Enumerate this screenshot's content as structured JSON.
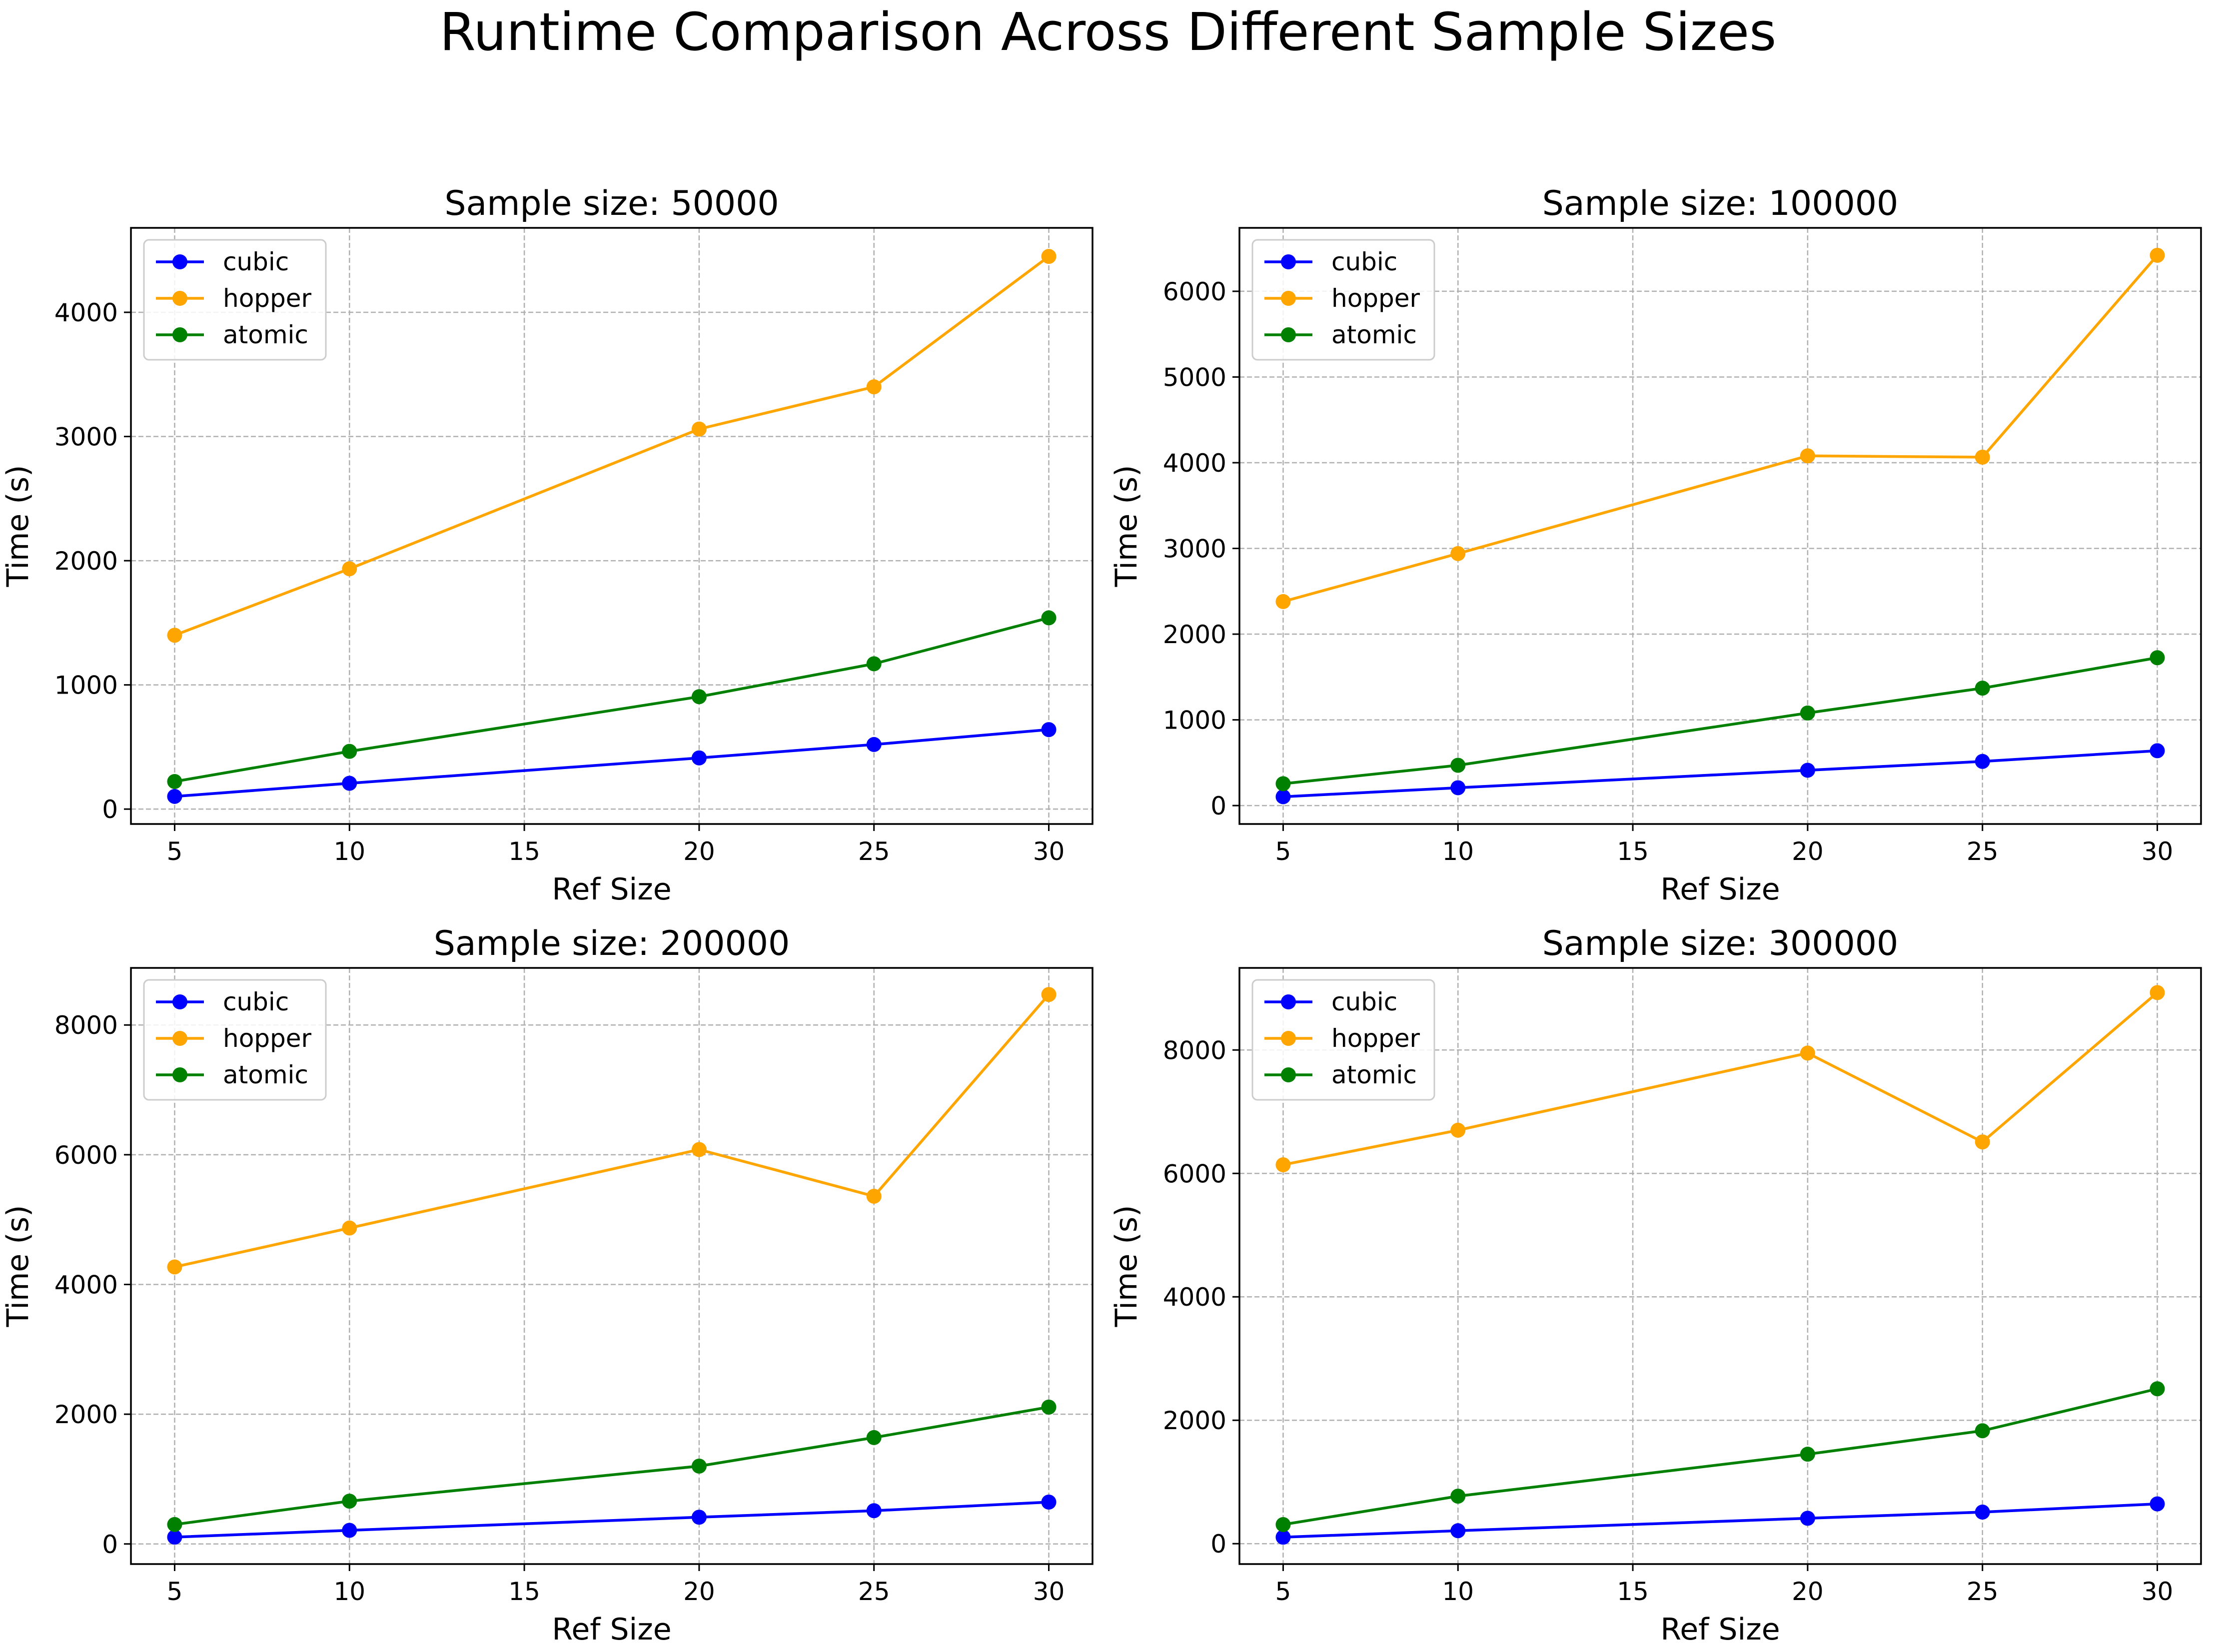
{
  "figure_title": "Runtime Comparison Across Different Sample Sizes",
  "chart_data": [
    {
      "type": "line",
      "title": "Sample size: 50000",
      "xlabel": "Ref Size",
      "ylabel": "Time (s)",
      "x": [
        5,
        10,
        20,
        25,
        30
      ],
      "xticks": [
        5,
        10,
        15,
        20,
        25,
        30
      ],
      "xlim": [
        3.75,
        31.25
      ],
      "yticks": [
        0,
        1000,
        2000,
        3000,
        4000
      ],
      "ylim": [
        -120,
        4680
      ],
      "grid": true,
      "legend_position": "upper-left",
      "series": [
        {
          "name": "cubic",
          "color": "#0000ff",
          "values": [
            102,
            208,
            412,
            520,
            640
          ]
        },
        {
          "name": "hopper",
          "color": "#ffa500",
          "values": [
            1400,
            1935,
            3060,
            3400,
            4450
          ]
        },
        {
          "name": "atomic",
          "color": "#008000",
          "values": [
            222,
            465,
            905,
            1170,
            1540
          ]
        }
      ]
    },
    {
      "type": "line",
      "title": "Sample size: 100000",
      "xlabel": "Ref Size",
      "ylabel": "Time (s)",
      "x": [
        5,
        10,
        20,
        25,
        30
      ],
      "xticks": [
        5,
        10,
        15,
        20,
        25,
        30
      ],
      "xlim": [
        3.75,
        31.25
      ],
      "yticks": [
        0,
        1000,
        2000,
        3000,
        4000,
        5000,
        6000
      ],
      "ylim": [
        -215,
        6740
      ],
      "grid": true,
      "legend_position": "upper-left",
      "series": [
        {
          "name": "cubic",
          "color": "#0000ff",
          "values": [
            103,
            208,
            412,
            515,
            640
          ]
        },
        {
          "name": "hopper",
          "color": "#ffa500",
          "values": [
            2380,
            2940,
            4080,
            4065,
            6420
          ]
        },
        {
          "name": "atomic",
          "color": "#008000",
          "values": [
            255,
            470,
            1080,
            1370,
            1725
          ]
        }
      ]
    },
    {
      "type": "line",
      "title": "Sample size: 200000",
      "xlabel": "Ref Size",
      "ylabel": "Time (s)",
      "x": [
        5,
        10,
        20,
        25,
        30
      ],
      "xticks": [
        5,
        10,
        15,
        20,
        25,
        30
      ],
      "xlim": [
        3.75,
        31.25
      ],
      "yticks": [
        0,
        2000,
        4000,
        6000,
        8000
      ],
      "ylim": [
        -310,
        8880
      ],
      "grid": true,
      "legend_position": "upper-left",
      "series": [
        {
          "name": "cubic",
          "color": "#0000ff",
          "values": [
            105,
            210,
            412,
            512,
            645
          ]
        },
        {
          "name": "hopper",
          "color": "#ffa500",
          "values": [
            4270,
            4870,
            6080,
            5360,
            8470
          ]
        },
        {
          "name": "atomic",
          "color": "#008000",
          "values": [
            300,
            660,
            1200,
            1640,
            2110
          ]
        }
      ]
    },
    {
      "type": "line",
      "title": "Sample size: 300000",
      "xlabel": "Ref Size",
      "ylabel": "Time (s)",
      "x": [
        5,
        10,
        20,
        25,
        30
      ],
      "xticks": [
        5,
        10,
        15,
        20,
        25,
        30
      ],
      "xlim": [
        3.75,
        31.25
      ],
      "yticks": [
        0,
        2000,
        4000,
        6000,
        8000
      ],
      "ylim": [
        -330,
        9330
      ],
      "grid": true,
      "legend_position": "upper-left",
      "series": [
        {
          "name": "cubic",
          "color": "#0000ff",
          "values": [
            105,
            210,
            412,
            512,
            645
          ]
        },
        {
          "name": "hopper",
          "color": "#ffa500",
          "values": [
            6140,
            6700,
            7950,
            6510,
            8930
          ]
        },
        {
          "name": "atomic",
          "color": "#008000",
          "values": [
            310,
            770,
            1450,
            1830,
            2510
          ]
        }
      ]
    }
  ]
}
